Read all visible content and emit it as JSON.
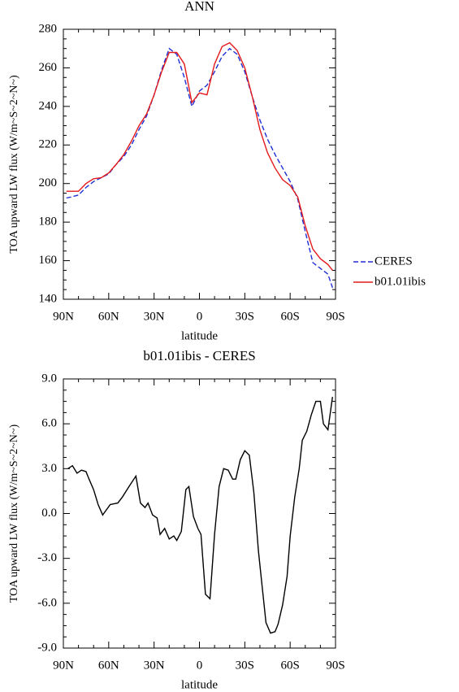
{
  "chart_data": [
    {
      "type": "line",
      "title": "ANN",
      "xlabel": "latitude",
      "ylabel": "TOA upward LW flux (W/m~S~2~N~)",
      "x": [
        88,
        85,
        80,
        75,
        70,
        65,
        60,
        55,
        50,
        45,
        40,
        35,
        30,
        25,
        20,
        15,
        10,
        5,
        0,
        -5,
        -10,
        -15,
        -20,
        -25,
        -30,
        -35,
        -40,
        -45,
        -50,
        -55,
        -60,
        -65,
        -70,
        -75,
        -80,
        -85,
        -88
      ],
      "series": [
        {
          "name": "CERES",
          "color": "#1f2fd6",
          "style": "dashed",
          "values": [
            192.5,
            193,
            194,
            198,
            201,
            203,
            205,
            210,
            214,
            220,
            228,
            235,
            246,
            259,
            270,
            267,
            255,
            240,
            248,
            251,
            258,
            266,
            270,
            267,
            258,
            245,
            233,
            223,
            215,
            208,
            201,
            192,
            175,
            159,
            156,
            153,
            146
          ]
        },
        {
          "name": "b01.01ibis",
          "color": "#e41a1c",
          "style": "solid",
          "values": [
            196,
            196,
            196,
            200,
            202.5,
            203,
            205.5,
            210,
            215,
            222,
            230,
            236,
            246,
            258,
            268,
            268,
            262,
            242,
            247,
            246,
            262,
            271,
            273,
            269,
            260,
            245,
            228,
            216,
            208,
            202,
            199,
            193,
            178,
            166,
            161,
            158,
            155
          ]
        }
      ],
      "xlim": [
        90,
        -90
      ],
      "xticks": [
        {
          "value": 90,
          "label": "90N"
        },
        {
          "value": 60,
          "label": "60N"
        },
        {
          "value": 30,
          "label": "30N"
        },
        0,
        {
          "value": -30,
          "label": "30S"
        },
        {
          "value": -60,
          "label": "60S"
        },
        {
          "value": -90,
          "label": "90S"
        }
      ],
      "ylim": [
        140,
        280
      ],
      "yticks": [
        140,
        160,
        180,
        200,
        220,
        240,
        260,
        280
      ],
      "legend": "right"
    },
    {
      "type": "line",
      "title": "b01.01ibis - CERES",
      "xlabel": "latitude",
      "ylabel": "TOA upward LW flux (W/m~S~2~N~)",
      "x": [
        87,
        84,
        81,
        78,
        75,
        73,
        70,
        67,
        64,
        59,
        54,
        51,
        46,
        42,
        39,
        36,
        34,
        31,
        28,
        26,
        23,
        20,
        17,
        15,
        12,
        9,
        7,
        4,
        1,
        -1,
        -4,
        -7,
        -10,
        -13,
        -16,
        -19,
        -22,
        -24,
        -27,
        -30,
        -33,
        -36,
        -39,
        -42,
        -44,
        -47,
        -50,
        -52,
        -55,
        -58,
        -60,
        -63,
        -66,
        -68,
        -71,
        -74,
        -77,
        -80,
        -82,
        -85,
        -88
      ],
      "series": [
        {
          "color": "#000000",
          "style": "solid",
          "values": [
            3.0,
            3.2,
            2.7,
            2.9,
            2.8,
            2.3,
            1.6,
            0.6,
            -0.1,
            0.6,
            0.7,
            1.1,
            1.9,
            2.5,
            0.7,
            0.4,
            0.7,
            -0.1,
            -0.3,
            -1.4,
            -1.0,
            -1.7,
            -1.5,
            -1.8,
            -1.2,
            1.6,
            1.8,
            -0.2,
            -1.0,
            -1.4,
            -5.4,
            -5.7,
            -1.4,
            1.8,
            3.0,
            2.9,
            2.3,
            2.3,
            3.6,
            4.2,
            3.9,
            1.4,
            -2.5,
            -5.4,
            -7.3,
            -8.0,
            -7.9,
            -7.4,
            -6.1,
            -4.2,
            -1.5,
            1.1,
            3.0,
            4.9,
            5.5,
            6.6,
            7.5,
            7.5,
            6.0,
            5.6,
            7.8
          ]
        }
      ],
      "xlim": [
        90,
        -90
      ],
      "xticks": [
        {
          "value": 90,
          "label": "90N"
        },
        {
          "value": 60,
          "label": "60N"
        },
        {
          "value": 30,
          "label": "30N"
        },
        0,
        {
          "value": -30,
          "label": "30S"
        },
        {
          "value": -60,
          "label": "60S"
        },
        {
          "value": -90,
          "label": "90S"
        }
      ],
      "ylim": [
        -9,
        9
      ],
      "yticks": [
        {
          "value": -9,
          "label": "-9.0"
        },
        {
          "value": -6,
          "label": "-6.0"
        },
        {
          "value": -3,
          "label": "-3.0"
        },
        {
          "value": 0,
          "label": "0.0"
        },
        {
          "value": 3,
          "label": "3.0"
        },
        {
          "value": 6,
          "label": "6.0"
        },
        {
          "value": 9,
          "label": "9.0"
        }
      ]
    }
  ]
}
